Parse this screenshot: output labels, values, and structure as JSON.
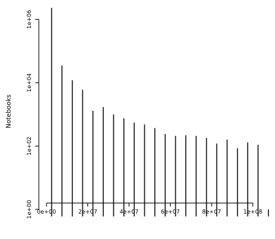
{
  "chart_data": {
    "type": "bar",
    "title": "",
    "xlabel": "",
    "ylabel": "Notebooks",
    "y_scale": "log10",
    "ylim": [
      0.6,
      3000000
    ],
    "xlim": [
      -1000000,
      109000000
    ],
    "grid": false,
    "legend": "none",
    "x_tick_labels": [
      "0e+00",
      "2e+07",
      "4e+07",
      "6e+07",
      "8e+07",
      "1e+08"
    ],
    "x_ticks": [
      0,
      20000000,
      40000000,
      60000000,
      80000000,
      100000000
    ],
    "y_tick_labels": [
      "1e+00",
      "1e+02",
      "1e+04",
      "1e+06"
    ],
    "y_ticks": [
      1,
      100,
      10000,
      1000000
    ],
    "series": [
      {
        "x": [
          2500000,
          7500000,
          12500000,
          17500000,
          22500000,
          27500000,
          32500000,
          37500000,
          42500000,
          47500000,
          52500000,
          57500000,
          62500000,
          67500000,
          72500000,
          77500000,
          82500000,
          87500000,
          92500000,
          97500000,
          102500000,
          107500000
        ],
        "values": [
          2300000,
          35000,
          12000,
          6000,
          1300,
          1700,
          1000,
          750,
          550,
          480,
          370,
          240,
          210,
          220,
          210,
          180,
          120,
          160,
          85,
          130,
          110,
          1
        ]
      }
    ],
    "colors": {
      "bars": "#000000",
      "axes": "#000000"
    }
  }
}
